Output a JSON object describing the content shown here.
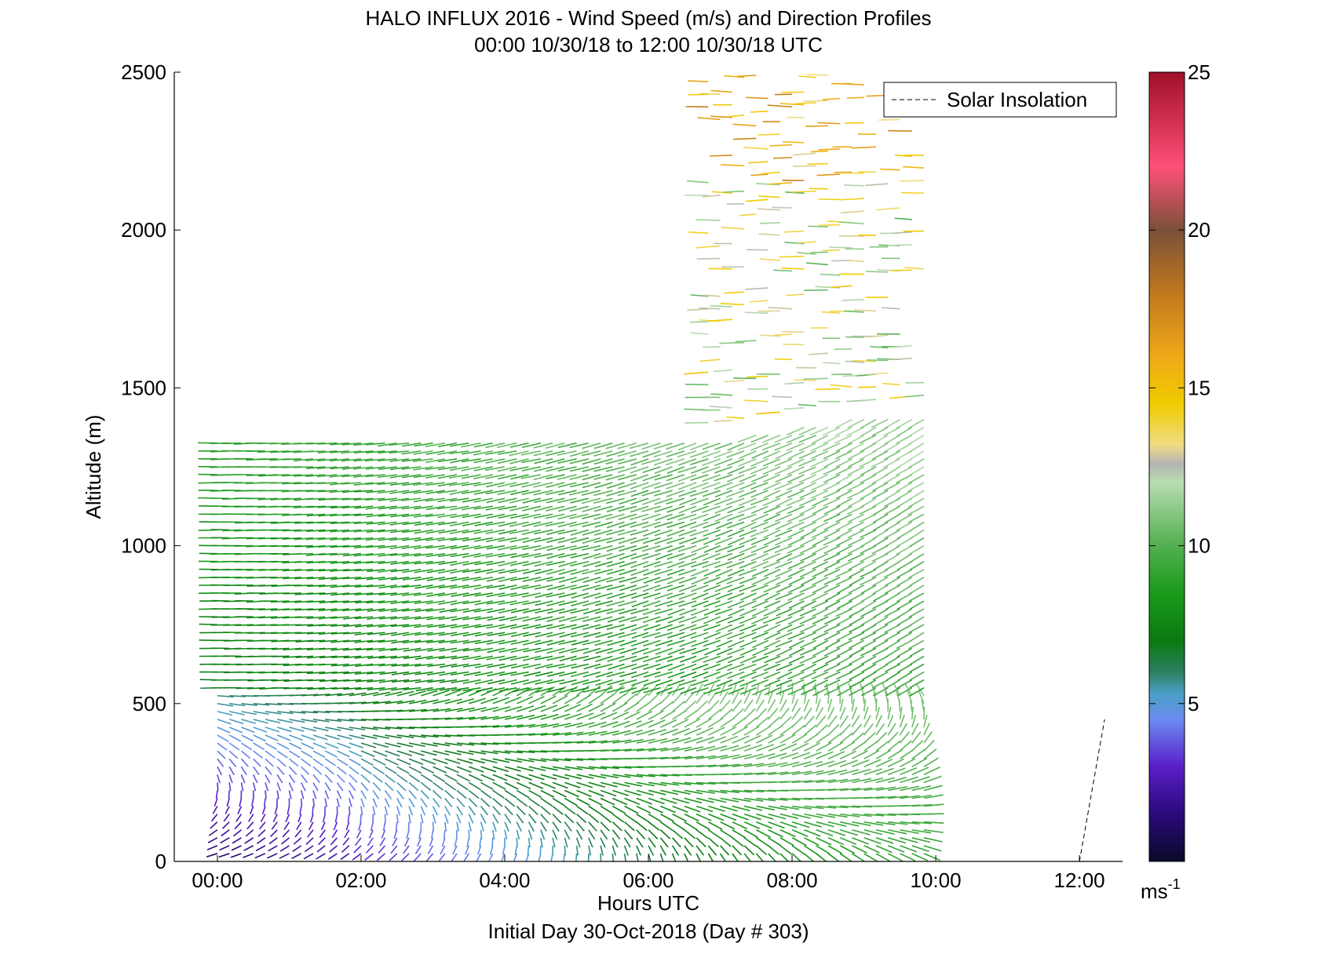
{
  "chart_data": {
    "type": "vector_field",
    "title": "HALO INFLUX 2016 - Wind Speed (m/s) and Direction Profiles",
    "subtitle": "00:00 10/30/18 to 12:00 10/30/18  UTC",
    "xlabel": "Hours UTC",
    "xlabel2": "Initial Day 30-Oct-2018 (Day # 303)",
    "ylabel": "Altitude (m)",
    "xlim": [
      -0.6,
      12.6
    ],
    "ylim": [
      0,
      2500
    ],
    "x_ticks": [
      {
        "value": 0,
        "label": "00:00"
      },
      {
        "value": 2,
        "label": "02:00"
      },
      {
        "value": 4,
        "label": "04:00"
      },
      {
        "value": 6,
        "label": "06:00"
      },
      {
        "value": 8,
        "label": "08:00"
      },
      {
        "value": 10,
        "label": "10:00"
      },
      {
        "value": 12,
        "label": "12:00"
      }
    ],
    "y_ticks": [
      {
        "value": 0,
        "label": "0"
      },
      {
        "value": 500,
        "label": "500"
      },
      {
        "value": 1000,
        "label": "1000"
      },
      {
        "value": 1500,
        "label": "1500"
      },
      {
        "value": 2000,
        "label": "2000"
      },
      {
        "value": 2500,
        "label": "2500"
      }
    ],
    "legend": {
      "entries": [
        "Solar Insolation"
      ],
      "position": "top-right"
    },
    "colorbar": {
      "range": [
        0,
        25
      ],
      "ticks": [
        {
          "value": 5,
          "label": "5"
        },
        {
          "value": 10,
          "label": "10"
        },
        {
          "value": 15,
          "label": "15"
        },
        {
          "value": 20,
          "label": "20"
        },
        {
          "value": 25,
          "label": "25"
        }
      ],
      "unit_label": "ms",
      "unit_exponent": "-1",
      "stops": [
        {
          "v": 0,
          "color": "#0a0a2a"
        },
        {
          "v": 1.5,
          "color": "#2a0a7a"
        },
        {
          "v": 3,
          "color": "#5a1ec8"
        },
        {
          "v": 4.5,
          "color": "#6a8cf0"
        },
        {
          "v": 5.3,
          "color": "#4aa0c8"
        },
        {
          "v": 6,
          "color": "#2a8060"
        },
        {
          "v": 7,
          "color": "#0a7a10"
        },
        {
          "v": 8.5,
          "color": "#1a9a1a"
        },
        {
          "v": 10,
          "color": "#52b050"
        },
        {
          "v": 12,
          "color": "#b8dcb0"
        },
        {
          "v": 12.6,
          "color": "#b4b4b4"
        },
        {
          "v": 13.2,
          "color": "#f0dc82"
        },
        {
          "v": 14.5,
          "color": "#f0cc00"
        },
        {
          "v": 16,
          "color": "#f0a818"
        },
        {
          "v": 18,
          "color": "#c0781e"
        },
        {
          "v": 20,
          "color": "#7a5038"
        },
        {
          "v": 22,
          "color": "#ff5078"
        },
        {
          "v": 25,
          "color": "#a01028"
        }
      ]
    },
    "solar_insolation_line": {
      "x": [
        12.0,
        12.35
      ],
      "y": [
        0,
        450
      ]
    },
    "profiles": {
      "times_start": 0.0,
      "time_step": 0.1667,
      "count": 60,
      "altitude_step": 25,
      "note_source": "approximate wind barbs read from figure"
    }
  }
}
